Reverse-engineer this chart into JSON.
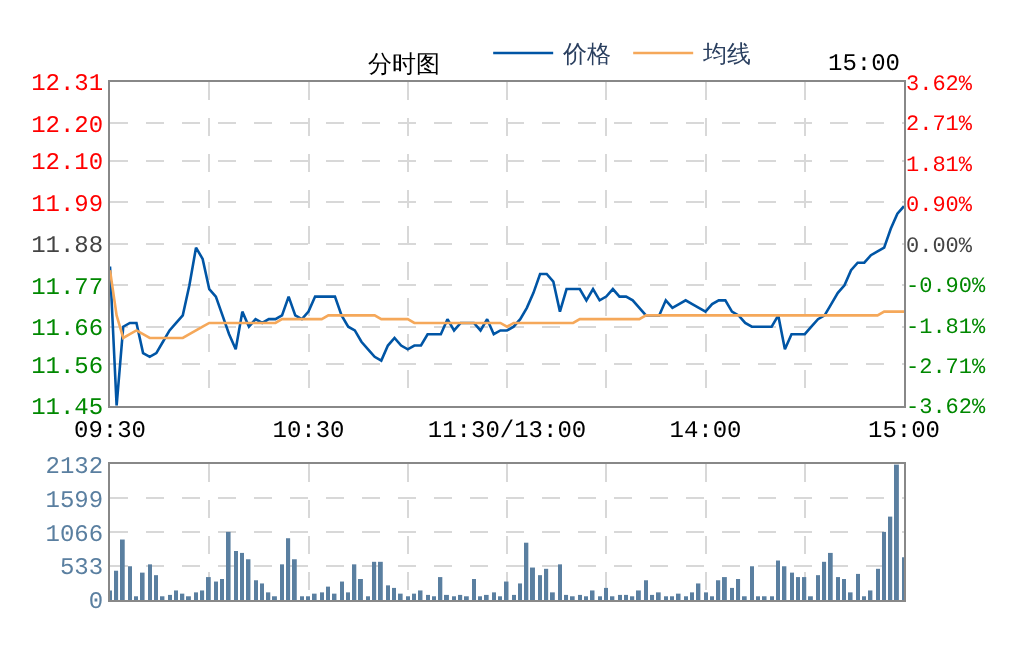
{
  "chart_data": [
    {
      "type": "line",
      "title": "分时图",
      "legend": "top",
      "grid": true,
      "annotations": [
        "15:00"
      ],
      "categories": [
        "09:30",
        null,
        null,
        null,
        null,
        null,
        null,
        null,
        null,
        null,
        null,
        null,
        null,
        null,
        null,
        null,
        null,
        null,
        null,
        null,
        null,
        null,
        null,
        null,
        null,
        null,
        null,
        null,
        null,
        null,
        "10:30",
        null,
        null,
        null,
        null,
        null,
        null,
        null,
        null,
        null,
        null,
        null,
        null,
        null,
        null,
        null,
        null,
        null,
        null,
        null,
        null,
        null,
        null,
        null,
        null,
        null,
        null,
        null,
        null,
        null,
        "11:30/13:00",
        null,
        null,
        null,
        null,
        null,
        null,
        null,
        null,
        null,
        null,
        null,
        null,
        null,
        null,
        null,
        null,
        null,
        null,
        null,
        null,
        null,
        null,
        null,
        null,
        null,
        null,
        null,
        null,
        null,
        "14:00",
        null,
        null,
        null,
        null,
        null,
        null,
        null,
        null,
        null,
        null,
        null,
        null,
        null,
        null,
        null,
        null,
        null,
        null,
        null,
        null,
        null,
        null,
        null,
        null,
        null,
        null,
        null,
        null,
        null,
        "15:00"
      ],
      "ylim": [
        11.45,
        12.31
      ],
      "yticks": [
        11.45,
        11.56,
        11.66,
        11.77,
        11.88,
        11.99,
        {
          "value": 12.1,
          "label": "12.10"
        },
        {
          "value": 12.2,
          "label": "12.20"
        },
        12.31
      ],
      "y2lim": [
        -3.62,
        3.62
      ],
      "y2ticks": [
        {
          "value": -3.62,
          "label": "-3.62%"
        },
        {
          "value": -2.71,
          "label": "-2.71%"
        },
        {
          "value": -1.81,
          "label": "-1.81%"
        },
        {
          "value": -0.9,
          "label": "-0.90%"
        },
        {
          "value": 0,
          "label": "0.00%"
        },
        {
          "value": 0.9,
          "label": "0.90%"
        },
        {
          "value": 1.81,
          "label": "1.81%"
        },
        {
          "value": 2.71,
          "label": "2.71%"
        },
        {
          "value": 3.62,
          "label": "3.62%"
        }
      ],
      "series": [
        {
          "name": "价格",
          "color": "#0055a5",
          "values": [
            11.82,
            11.45,
            11.66,
            11.67,
            11.67,
            11.59,
            11.58,
            11.59,
            11.62,
            11.65,
            11.67,
            11.69,
            11.77,
            11.87,
            11.84,
            11.76,
            11.74,
            11.69,
            11.64,
            11.6,
            11.7,
            11.66,
            11.68,
            11.67,
            11.68,
            11.68,
            11.69,
            11.74,
            11.69,
            11.68,
            11.7,
            11.74,
            11.74,
            11.74,
            11.74,
            11.69,
            11.66,
            11.65,
            11.62,
            11.6,
            11.58,
            11.57,
            11.61,
            11.63,
            11.61,
            11.6,
            11.61,
            11.61,
            11.64,
            11.64,
            11.64,
            11.68,
            11.65,
            11.67,
            11.67,
            11.67,
            11.65,
            11.68,
            11.64,
            11.65,
            11.65,
            11.66,
            11.68,
            11.71,
            11.75,
            11.8,
            11.8,
            11.78,
            11.7,
            11.76,
            11.76,
            11.76,
            11.73,
            11.76,
            11.73,
            11.74,
            11.76,
            11.74,
            11.74,
            11.73,
            11.71,
            11.69,
            11.69,
            11.69,
            11.73,
            11.71,
            11.72,
            11.73,
            11.72,
            11.71,
            11.7,
            11.72,
            11.73,
            11.73,
            11.7,
            11.69,
            11.67,
            11.66,
            11.66,
            11.66,
            11.66,
            11.69,
            11.6,
            11.64,
            11.64,
            11.64,
            11.66,
            11.68,
            11.69,
            11.72,
            11.75,
            11.77,
            11.81,
            11.83,
            11.83,
            11.85,
            11.86,
            11.87,
            11.92,
            11.96,
            11.98
          ]
        },
        {
          "name": "均线",
          "color": "#f5a85a",
          "values": [
            11.81,
            11.69,
            11.63,
            11.64,
            11.65,
            11.64,
            11.63,
            11.63,
            11.63,
            11.63,
            11.63,
            11.63,
            11.64,
            11.65,
            11.66,
            11.67,
            11.67,
            11.67,
            11.67,
            11.67,
            11.67,
            11.67,
            11.67,
            11.67,
            11.67,
            11.67,
            11.68,
            11.68,
            11.68,
            11.68,
            11.68,
            11.68,
            11.68,
            11.69,
            11.69,
            11.69,
            11.69,
            11.69,
            11.69,
            11.69,
            11.69,
            11.68,
            11.68,
            11.68,
            11.68,
            11.68,
            11.67,
            11.67,
            11.67,
            11.67,
            11.67,
            11.67,
            11.67,
            11.67,
            11.67,
            11.67,
            11.67,
            11.67,
            11.67,
            11.67,
            11.66,
            11.67,
            11.67,
            11.67,
            11.67,
            11.67,
            11.67,
            11.67,
            11.67,
            11.67,
            11.67,
            11.68,
            11.68,
            11.68,
            11.68,
            11.68,
            11.68,
            11.68,
            11.68,
            11.68,
            11.68,
            11.69,
            11.69,
            11.69,
            11.69,
            11.69,
            11.69,
            11.69,
            11.69,
            11.69,
            11.69,
            11.69,
            11.69,
            11.69,
            11.69,
            11.69,
            11.69,
            11.69,
            11.69,
            11.69,
            11.69,
            11.69,
            11.69,
            11.69,
            11.69,
            11.69,
            11.69,
            11.69,
            11.69,
            11.69,
            11.69,
            11.69,
            11.69,
            11.69,
            11.69,
            11.69,
            11.69,
            11.7,
            11.7,
            11.7,
            11.7
          ]
        }
      ]
    },
    {
      "type": "bar",
      "grid": true,
      "tick_labels": "y",
      "color": "#5a7fa0",
      "categories": [
        null,
        null,
        null,
        null,
        null,
        null,
        null,
        null,
        null,
        null,
        null,
        null,
        null,
        null,
        null,
        null,
        null,
        null,
        null,
        null,
        null,
        null,
        null,
        null,
        null,
        null,
        null,
        null,
        null,
        null,
        null,
        null,
        null,
        null,
        null,
        null,
        null,
        null,
        null,
        null,
        null,
        null,
        null,
        null,
        null,
        null,
        null,
        null,
        null,
        null,
        null,
        null,
        null,
        null,
        null,
        null,
        null,
        null,
        null,
        null,
        null,
        null,
        null,
        null,
        null,
        null,
        null,
        null,
        null,
        null,
        null,
        null,
        null,
        null,
        null,
        null,
        null,
        null,
        null,
        null,
        null,
        null,
        null,
        null,
        null,
        null,
        null,
        null,
        null,
        null,
        null,
        null,
        null,
        null,
        null,
        null,
        null,
        null,
        null,
        null,
        null,
        null,
        null,
        null,
        null,
        null,
        null,
        null,
        null,
        null,
        null,
        null,
        null,
        null,
        null,
        null,
        null,
        null,
        null,
        null,
        null
      ],
      "ylim": [
        0,
        2132
      ],
      "yticks": [
        0,
        533,
        1066,
        1599,
        2132
      ],
      "values": [
        150,
        460,
        950,
        530,
        50,
        430,
        560,
        390,
        40,
        80,
        150,
        100,
        40,
        120,
        150,
        360,
        290,
        330,
        1070,
        770,
        740,
        640,
        310,
        260,
        120,
        40,
        560,
        970,
        640,
        40,
        40,
        100,
        120,
        210,
        100,
        290,
        120,
        560,
        330,
        40,
        600,
        600,
        230,
        190,
        100,
        40,
        100,
        150,
        80,
        40,
        360,
        80,
        40,
        80,
        40,
        330,
        40,
        80,
        120,
        40,
        290,
        80,
        260,
        900,
        510,
        390,
        490,
        120,
        560,
        80,
        40,
        80,
        40,
        150,
        40,
        190,
        40,
        80,
        80,
        40,
        150,
        310,
        80,
        120,
        40,
        40,
        100,
        40,
        120,
        260,
        120,
        40,
        310,
        360,
        190,
        330,
        40,
        530,
        40,
        40,
        40,
        620,
        530,
        430,
        360,
        360,
        40,
        390,
        600,
        740,
        360,
        330,
        120,
        410,
        40,
        150,
        490,
        1070,
        1310,
        2130,
        670
      ]
    }
  ]
}
